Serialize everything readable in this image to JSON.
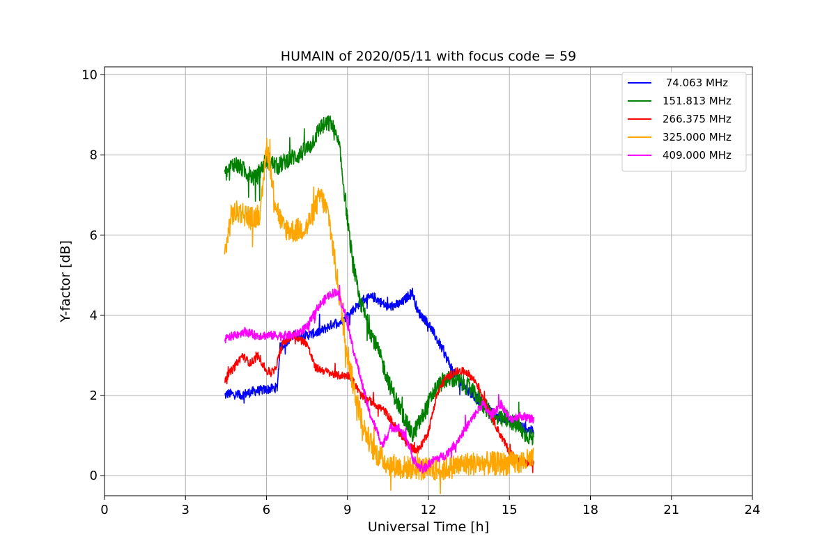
{
  "chart_data": {
    "type": "line",
    "title": "HUMAIN of 2020/05/11 with focus code = 59",
    "xlabel": "Universal Time [h]",
    "ylabel": "Y-factor [dB]",
    "xlim": [
      0,
      24
    ],
    "ylim": [
      -0.5,
      10.2
    ],
    "xticks": [
      0,
      3,
      6,
      9,
      12,
      15,
      18,
      21,
      24
    ],
    "yticks": [
      0,
      2,
      4,
      6,
      8,
      10
    ],
    "grid": true,
    "legend_position": "top-right",
    "series": [
      {
        "name": " 74.063 MHz",
        "color": "#0000ff",
        "noise": 0.12,
        "points": [
          [
            4.45,
            2.0
          ],
          [
            4.6,
            2.05
          ],
          [
            5.0,
            2.0
          ],
          [
            5.5,
            2.1
          ],
          [
            6.0,
            2.15
          ],
          [
            6.4,
            2.2
          ],
          [
            6.5,
            3.2
          ],
          [
            7.0,
            3.5
          ],
          [
            7.5,
            3.5
          ],
          [
            8.0,
            3.6
          ],
          [
            8.5,
            3.8
          ],
          [
            8.8,
            3.85
          ],
          [
            9.0,
            4.0
          ],
          [
            9.3,
            4.2
          ],
          [
            9.6,
            4.4
          ],
          [
            10.0,
            4.45
          ],
          [
            10.5,
            4.2
          ],
          [
            11.0,
            4.3
          ],
          [
            11.4,
            4.6
          ],
          [
            11.6,
            4.1
          ],
          [
            12.0,
            3.8
          ],
          [
            12.4,
            3.3
          ],
          [
            12.7,
            2.9
          ],
          [
            13.0,
            2.5
          ],
          [
            13.5,
            2.1
          ],
          [
            14.0,
            1.8
          ],
          [
            14.5,
            1.5
          ],
          [
            15.0,
            1.4
          ],
          [
            15.5,
            1.2
          ],
          [
            15.9,
            1.1
          ]
        ]
      },
      {
        "name": "151.813 MHz",
        "color": "#008000",
        "noise": 0.22,
        "points": [
          [
            4.45,
            7.5
          ],
          [
            4.8,
            7.8
          ],
          [
            5.2,
            7.6
          ],
          [
            5.6,
            7.4
          ],
          [
            6.0,
            7.9
          ],
          [
            6.4,
            7.7
          ],
          [
            6.8,
            7.9
          ],
          [
            7.2,
            8.0
          ],
          [
            7.6,
            8.2
          ],
          [
            8.0,
            8.7
          ],
          [
            8.4,
            8.8
          ],
          [
            8.7,
            8.2
          ],
          [
            8.9,
            7.0
          ],
          [
            9.1,
            5.8
          ],
          [
            9.4,
            4.5
          ],
          [
            9.8,
            3.7
          ],
          [
            10.2,
            3.0
          ],
          [
            10.6,
            2.2
          ],
          [
            11.0,
            1.6
          ],
          [
            11.4,
            1.0
          ],
          [
            11.8,
            1.5
          ],
          [
            12.2,
            2.1
          ],
          [
            12.6,
            2.4
          ],
          [
            13.0,
            2.4
          ],
          [
            13.5,
            2.2
          ],
          [
            14.0,
            1.8
          ],
          [
            14.5,
            1.4
          ],
          [
            15.0,
            1.4
          ],
          [
            15.5,
            1.1
          ],
          [
            15.9,
            0.9
          ]
        ]
      },
      {
        "name": "266.375 MHz",
        "color": "#ff0000",
        "noise": 0.1,
        "points": [
          [
            4.45,
            2.4
          ],
          [
            4.8,
            2.7
          ],
          [
            5.1,
            3.0
          ],
          [
            5.4,
            2.8
          ],
          [
            5.7,
            3.0
          ],
          [
            6.0,
            2.6
          ],
          [
            6.3,
            2.6
          ],
          [
            6.6,
            3.3
          ],
          [
            7.0,
            3.5
          ],
          [
            7.5,
            3.3
          ],
          [
            7.8,
            2.7
          ],
          [
            8.2,
            2.6
          ],
          [
            8.6,
            2.5
          ],
          [
            8.8,
            2.5
          ],
          [
            9.1,
            2.5
          ],
          [
            9.5,
            2.0
          ],
          [
            10.0,
            1.8
          ],
          [
            10.4,
            1.6
          ],
          [
            10.8,
            1.2
          ],
          [
            11.2,
            0.8
          ],
          [
            11.6,
            0.6
          ],
          [
            12.0,
            1.1
          ],
          [
            12.3,
            2.0
          ],
          [
            12.6,
            2.4
          ],
          [
            13.0,
            2.6
          ],
          [
            13.4,
            2.6
          ],
          [
            13.8,
            2.3
          ],
          [
            14.2,
            1.7
          ],
          [
            14.6,
            1.1
          ],
          [
            15.0,
            0.6
          ],
          [
            15.4,
            0.35
          ],
          [
            15.9,
            0.3
          ]
        ]
      },
      {
        "name": "325.000 MHz",
        "color": "#ffa500",
        "noise": 0.3,
        "points": [
          [
            4.45,
            5.5
          ],
          [
            4.7,
            6.5
          ],
          [
            5.0,
            6.6
          ],
          [
            5.5,
            6.4
          ],
          [
            5.8,
            6.6
          ],
          [
            6.0,
            8.3
          ],
          [
            6.3,
            6.9
          ],
          [
            6.6,
            6.2
          ],
          [
            7.0,
            6.1
          ],
          [
            7.5,
            6.2
          ],
          [
            8.0,
            7.0
          ],
          [
            8.3,
            6.5
          ],
          [
            8.6,
            5.0
          ],
          [
            8.9,
            3.5
          ],
          [
            9.2,
            2.3
          ],
          [
            9.6,
            1.2
          ],
          [
            10.0,
            0.6
          ],
          [
            10.5,
            0.3
          ],
          [
            11.0,
            0.2
          ],
          [
            11.5,
            0.2
          ],
          [
            12.0,
            0.15
          ],
          [
            12.5,
            0.15
          ],
          [
            13.0,
            0.25
          ],
          [
            13.5,
            0.3
          ],
          [
            14.0,
            0.3
          ],
          [
            14.5,
            0.3
          ],
          [
            15.0,
            0.3
          ],
          [
            15.5,
            0.35
          ],
          [
            15.9,
            0.4
          ]
        ]
      },
      {
        "name": "409.000 MHz",
        "color": "#ff00ff",
        "noise": 0.11,
        "points": [
          [
            4.45,
            3.4
          ],
          [
            4.8,
            3.5
          ],
          [
            5.2,
            3.6
          ],
          [
            5.6,
            3.5
          ],
          [
            6.0,
            3.5
          ],
          [
            6.5,
            3.5
          ],
          [
            7.0,
            3.5
          ],
          [
            7.5,
            3.7
          ],
          [
            7.9,
            4.2
          ],
          [
            8.3,
            4.5
          ],
          [
            8.6,
            4.6
          ],
          [
            8.9,
            4.1
          ],
          [
            9.2,
            3.2
          ],
          [
            9.5,
            2.4
          ],
          [
            9.8,
            1.6
          ],
          [
            10.1,
            1.1
          ],
          [
            10.3,
            0.75
          ],
          [
            10.6,
            1.2
          ],
          [
            10.9,
            1.2
          ],
          [
            11.2,
            0.9
          ],
          [
            11.5,
            0.3
          ],
          [
            11.8,
            0.15
          ],
          [
            12.2,
            0.4
          ],
          [
            12.6,
            0.5
          ],
          [
            13.0,
            0.8
          ],
          [
            13.5,
            1.3
          ],
          [
            14.0,
            1.8
          ],
          [
            14.3,
            1.5
          ],
          [
            14.7,
            1.8
          ],
          [
            15.0,
            1.4
          ],
          [
            15.4,
            1.5
          ],
          [
            15.9,
            1.4
          ]
        ]
      }
    ]
  }
}
